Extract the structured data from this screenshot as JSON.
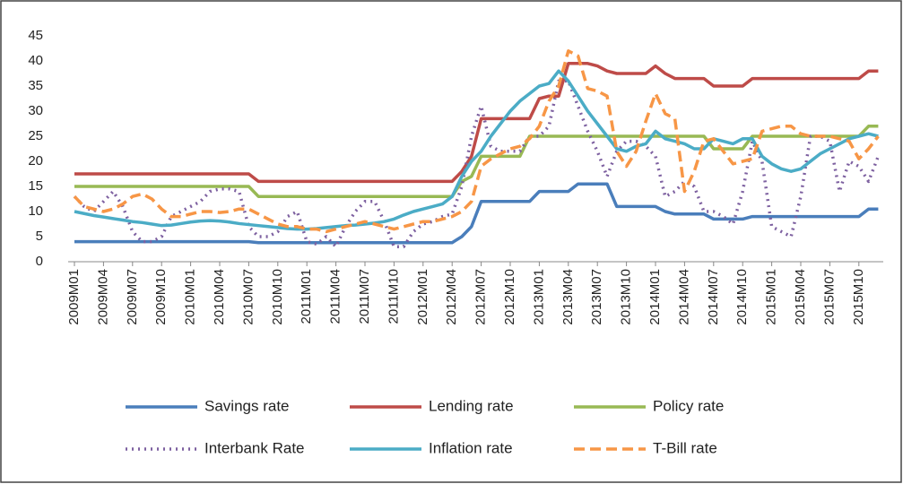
{
  "chart_data": {
    "type": "line",
    "categories": [
      "2009M01",
      null,
      null,
      "2009M04",
      null,
      null,
      "2009M07",
      null,
      null,
      "2009M10",
      null,
      null,
      "2010M01",
      null,
      null,
      "2010M04",
      null,
      null,
      "2010M07",
      null,
      null,
      "2010M10",
      null,
      null,
      "2011M01",
      null,
      null,
      "2011M04",
      null,
      null,
      "2011M07",
      null,
      null,
      "2011M10",
      null,
      null,
      "2012M01",
      null,
      null,
      "2012M04",
      null,
      null,
      "2012M07",
      null,
      null,
      "2012M10",
      null,
      null,
      "2013M01",
      null,
      null,
      "2013M04",
      null,
      null,
      "2013M07",
      null,
      null,
      "2013M10",
      null,
      null,
      "2014M01",
      null,
      null,
      "2014M04",
      null,
      null,
      "2014M07",
      null,
      null,
      "2014M10",
      null,
      null,
      "2015M01",
      null,
      null,
      "2015M04",
      null,
      null,
      "2015M07",
      null,
      null,
      "2015M10",
      null,
      null
    ],
    "ylim": [
      0,
      45
    ],
    "yticks": [
      0,
      5,
      10,
      15,
      20,
      25,
      30,
      35,
      40,
      45
    ],
    "grid": false,
    "series": [
      {
        "name": "Savings rate",
        "color": "#4a7ebb",
        "dash": "solid",
        "values": [
          4,
          4,
          4,
          4,
          4,
          4,
          4,
          4,
          4,
          4,
          4,
          4,
          4,
          4,
          4,
          4,
          4,
          4,
          4,
          3.8,
          3.8,
          3.8,
          3.8,
          3.8,
          3.8,
          3.8,
          3.8,
          3.8,
          3.8,
          3.8,
          3.8,
          3.8,
          3.8,
          3.8,
          3.8,
          3.8,
          3.8,
          3.8,
          3.8,
          3.8,
          5,
          7,
          12,
          12,
          12,
          12,
          12,
          12,
          14,
          14,
          14,
          14,
          15.5,
          15.5,
          15.5,
          15.5,
          11,
          11,
          11,
          11,
          11,
          10,
          9.5,
          9.5,
          9.5,
          9.5,
          8.5,
          8.5,
          8.5,
          8.5,
          9,
          9,
          9,
          9,
          9,
          9,
          9,
          9,
          9,
          9,
          9,
          9,
          10.5,
          10.5
        ]
      },
      {
        "name": "Lending rate",
        "color": "#be4b48",
        "dash": "solid",
        "values": [
          17.5,
          17.5,
          17.5,
          17.5,
          17.5,
          17.5,
          17.5,
          17.5,
          17.5,
          17.5,
          17.5,
          17.5,
          17.5,
          17.5,
          17.5,
          17.5,
          17.5,
          17.5,
          17.5,
          16,
          16,
          16,
          16,
          16,
          16,
          16,
          16,
          16,
          16,
          16,
          16,
          16,
          16,
          16,
          16,
          16,
          16,
          16,
          16,
          16,
          18,
          21,
          28.5,
          28.5,
          28.5,
          28.5,
          28.5,
          28.5,
          32.5,
          33,
          33,
          39.5,
          39.5,
          39.5,
          39,
          38,
          37.5,
          37.5,
          37.5,
          37.5,
          39,
          37.5,
          36.5,
          36.5,
          36.5,
          36.5,
          35,
          35,
          35,
          35,
          36.5,
          36.5,
          36.5,
          36.5,
          36.5,
          36.5,
          36.5,
          36.5,
          36.5,
          36.5,
          36.5,
          36.5,
          38,
          38
        ]
      },
      {
        "name": "Policy rate",
        "color": "#98b954",
        "dash": "solid",
        "values": [
          15,
          15,
          15,
          15,
          15,
          15,
          15,
          15,
          15,
          15,
          15,
          15,
          15,
          15,
          15,
          15,
          15,
          15,
          15,
          13,
          13,
          13,
          13,
          13,
          13,
          13,
          13,
          13,
          13,
          13,
          13,
          13,
          13,
          13,
          13,
          13,
          13,
          13,
          13,
          13,
          16,
          17,
          21,
          21,
          21,
          21,
          21,
          25,
          25,
          25,
          25,
          25,
          25,
          25,
          25,
          25,
          25,
          25,
          25,
          25,
          25,
          25,
          25,
          25,
          25,
          25,
          22.5,
          22.5,
          22.5,
          22.5,
          25,
          25,
          25,
          25,
          25,
          25,
          25,
          25,
          25,
          25,
          25,
          25,
          27,
          27
        ]
      },
      {
        "name": "Interbank Rate",
        "color": "#7d60a0",
        "dash": "dotted",
        "values": [
          13,
          11,
          10,
          12,
          14,
          11,
          6,
          4,
          4,
          5,
          9,
          10,
          11,
          12,
          14,
          14.5,
          14.5,
          14,
          7,
          5,
          5,
          6,
          9,
          10,
          4,
          3.5,
          5,
          3,
          7,
          10,
          12,
          12,
          8,
          3,
          3,
          6,
          7.5,
          8,
          9,
          9.5,
          15,
          25,
          31,
          23,
          22,
          22,
          22,
          25,
          25,
          27,
          36,
          36,
          31,
          26,
          22,
          17,
          22,
          24,
          24,
          23,
          21,
          13,
          14,
          16,
          15,
          10,
          10,
          9,
          7.5,
          14,
          24,
          20,
          7,
          6,
          5,
          13,
          25,
          25,
          24,
          14,
          20,
          19,
          16,
          21
        ]
      },
      {
        "name": "Inflation rate",
        "color": "#4bacc6",
        "dash": "solid",
        "values": [
          10,
          9.6,
          9.2,
          8.9,
          8.6,
          8.3,
          8,
          7.8,
          7.5,
          7.2,
          7.3,
          7.6,
          7.9,
          8.1,
          8.2,
          8.1,
          7.9,
          7.6,
          7.4,
          7.2,
          7,
          6.8,
          6.6,
          6.5,
          6.5,
          6.6,
          6.8,
          7,
          7.2,
          7.3,
          7.5,
          7.7,
          8,
          8.5,
          9.3,
          10,
          10.5,
          11,
          11.5,
          13,
          17,
          20,
          22,
          25,
          27.5,
          30,
          32,
          33.5,
          35,
          35.5,
          38,
          36,
          33,
          30,
          27.5,
          25,
          22.5,
          22,
          23,
          23.5,
          26,
          24.5,
          24,
          23.5,
          22.5,
          22.5,
          24.5,
          24,
          23.5,
          24.5,
          24.5,
          21,
          19.5,
          18.5,
          18,
          18.5,
          20,
          21.5,
          22.5,
          23.5,
          24.5,
          25,
          25.5,
          25
        ]
      },
      {
        "name": "T-Bill rate",
        "color": "#f79646",
        "dash": "dashed",
        "values": [
          13,
          11,
          10.5,
          10,
          10.5,
          11.5,
          13,
          13.5,
          12.5,
          10.5,
          9,
          9,
          9.5,
          10,
          10,
          9.8,
          10,
          10.5,
          10.5,
          9.5,
          8.5,
          7.5,
          7,
          7,
          6.5,
          6.5,
          6,
          6.5,
          7,
          7.5,
          8,
          7.5,
          7,
          6.5,
          7,
          7.5,
          8,
          8,
          8.5,
          9,
          10,
          12,
          19,
          20.5,
          21.5,
          22.5,
          23,
          24.5,
          27,
          32,
          35,
          42,
          41,
          34.5,
          34,
          33,
          22,
          19,
          22,
          28,
          33.5,
          29.5,
          28.5,
          14,
          18,
          24,
          24.5,
          22,
          19.5,
          20,
          20.5,
          26,
          26.5,
          27,
          27,
          25.5,
          25,
          25,
          25,
          24.5,
          24,
          20.5,
          22.5,
          25
        ]
      }
    ]
  }
}
